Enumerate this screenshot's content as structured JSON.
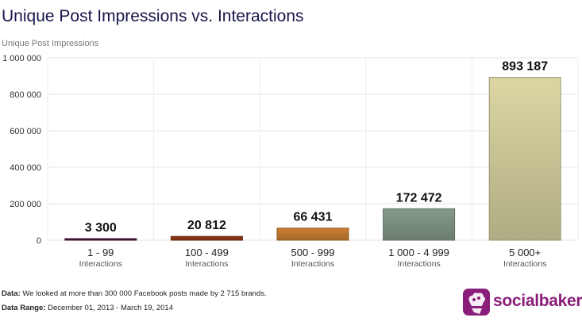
{
  "header": {
    "title": "Unique Post Impressions vs. Interactions",
    "y_axis_label": "Unique Post Impressions"
  },
  "chart_data": {
    "type": "bar",
    "title": "Unique Post Impressions vs. Interactions",
    "ylabel": "Unique Post Impressions",
    "xlabel": "Interactions",
    "ylim": [
      0,
      1000000
    ],
    "yticks": [
      0,
      200000,
      400000,
      600000,
      800000,
      1000000
    ],
    "ytick_labels": [
      "0",
      "200 000",
      "400 000",
      "600 000",
      "800 000",
      "1 000 000"
    ],
    "grid": true,
    "categories": [
      "1 - 99",
      "100 - 499",
      "500 - 999",
      "1 000 - 4 999",
      "5 000+"
    ],
    "category_sublabel": "Interactions",
    "values": [
      3300,
      20812,
      66431,
      172472,
      893187
    ],
    "value_labels": [
      "3 300",
      "20 812",
      "66 431",
      "172 472",
      "893 187"
    ],
    "colors": [
      "#4a1538",
      "#8a3512",
      "#c07a30",
      "#7e9281",
      "#cfca9a"
    ]
  },
  "footer": {
    "data_label": "Data:",
    "data_text": "We looked at more than 300 000 Facebook posts made by 2 715 brands.",
    "range_label": "Data Range:",
    "range_text": "December 01, 2013 - March 19, 2014"
  },
  "brand": {
    "name": "socialbakers",
    "color": "#8a1e7a"
  }
}
